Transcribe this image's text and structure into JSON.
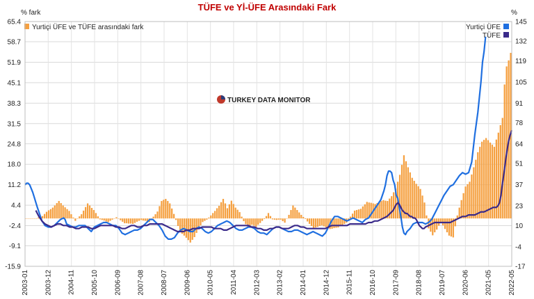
{
  "chart_data": {
    "type": "bar+line",
    "title": "TÜFE ve Yİ-ÜFE Arasındaki Fark",
    "left_axis_unit": "% fark",
    "right_axis_unit": "%",
    "left_ticks": [
      "65.4",
      "58.7",
      "51.9",
      "45.1",
      "38.3",
      "31.5",
      "24.8",
      "18.0",
      "11.2",
      "4.4",
      "-2.4",
      "-9.1",
      "-15.9"
    ],
    "right_ticks": [
      "145",
      "132",
      "119",
      "105",
      "91",
      "78",
      "64",
      "51",
      "37",
      "23",
      "10",
      "-4",
      "-17"
    ],
    "left_ylim": [
      -15.9,
      65.4
    ],
    "right_ylim": [
      -17,
      145
    ],
    "x_tick_labels": [
      "2003-01",
      "2003-12",
      "2004-11",
      "2005-10",
      "2006-09",
      "2007-08",
      "2008-07",
      "2009-06",
      "2010-05",
      "2011-04",
      "2012-03",
      "2013-02",
      "2014-01",
      "2014-12",
      "2015-11",
      "2016-10",
      "2017-09",
      "2018-08",
      "2019-07",
      "2020-06",
      "2021-05",
      "2022-05"
    ],
    "legend_left": "Yurtiçi ÜFE ve TÜFE arasındaki fark",
    "legend_right": [
      "Yurtiçi ÜFE",
      "TÜFE"
    ],
    "colors": {
      "bars": "#f5a040",
      "ufe": "#1f6fe0",
      "tufe": "#3a2a8a",
      "title": "#c00000"
    },
    "watermark": "TURKEY DATA MONITOR",
    "bar_anchors": [
      [
        0,
        0
      ],
      [
        5,
        0
      ],
      [
        8,
        0.8
      ],
      [
        10,
        2.2
      ],
      [
        13,
        3.6
      ],
      [
        16,
        5.8
      ],
      [
        18,
        4.3
      ],
      [
        21,
        2.5
      ],
      [
        24,
        -0.8
      ],
      [
        27,
        1.4
      ],
      [
        30,
        5.0
      ],
      [
        33,
        2.8
      ],
      [
        36,
        -0.3
      ],
      [
        40,
        -1.2
      ],
      [
        44,
        0.4
      ],
      [
        48,
        -1.6
      ],
      [
        52,
        -1.8
      ],
      [
        56,
        -0.5
      ],
      [
        60,
        -1.2
      ],
      [
        64,
        2.3
      ],
      [
        66,
        5.8
      ],
      [
        68,
        6.5
      ],
      [
        70,
        5.0
      ],
      [
        72,
        1.5
      ],
      [
        74,
        -2.5
      ],
      [
        76,
        -5.1
      ],
      [
        78,
        -6.4
      ],
      [
        80,
        -8.0
      ],
      [
        82,
        -6.2
      ],
      [
        84,
        -3.5
      ],
      [
        86,
        -1.2
      ],
      [
        88,
        -0.4
      ],
      [
        90,
        1.0
      ],
      [
        92,
        2.5
      ],
      [
        94,
        4.2
      ],
      [
        96,
        6.5
      ],
      [
        98,
        3.4
      ],
      [
        100,
        5.9
      ],
      [
        102,
        3.6
      ],
      [
        104,
        2.1
      ],
      [
        106,
        -0.9
      ],
      [
        108,
        -3.0
      ],
      [
        110,
        -2.1
      ],
      [
        112,
        -2.8
      ],
      [
        114,
        -1.5
      ],
      [
        116,
        -0.2
      ],
      [
        118,
        1.8
      ],
      [
        120,
        -0.3
      ],
      [
        122,
        -0.5
      ],
      [
        124,
        -0.4
      ],
      [
        126,
        -1.4
      ],
      [
        128,
        1.2
      ],
      [
        130,
        4.3
      ],
      [
        132,
        2.8
      ],
      [
        134,
        1.2
      ],
      [
        136,
        -0.2
      ],
      [
        138,
        -1.8
      ],
      [
        140,
        -3.3
      ],
      [
        144,
        -2.3
      ],
      [
        148,
        -3.5
      ],
      [
        152,
        -3.0
      ],
      [
        156,
        -1.4
      ],
      [
        160,
        2.6
      ],
      [
        163,
        3.2
      ],
      [
        166,
        5.5
      ],
      [
        170,
        4.8
      ],
      [
        174,
        6.1
      ],
      [
        176,
        5.8
      ],
      [
        178,
        7.4
      ],
      [
        180,
        9.9
      ],
      [
        182,
        14.5
      ],
      [
        184,
        21.0
      ],
      [
        186,
        17.0
      ],
      [
        188,
        13.5
      ],
      [
        190,
        11.5
      ],
      [
        192,
        9.8
      ],
      [
        194,
        5.3
      ],
      [
        196,
        -3.3
      ],
      [
        198,
        -5.6
      ],
      [
        200,
        -3.7
      ],
      [
        202,
        -1.1
      ],
      [
        204,
        -3.5
      ],
      [
        206,
        -5.7
      ],
      [
        208,
        -6.3
      ],
      [
        210,
        1.0
      ],
      [
        212,
        6.1
      ],
      [
        214,
        10.6
      ],
      [
        216,
        12.2
      ],
      [
        218,
        17.0
      ],
      [
        220,
        22.0
      ],
      [
        222,
        25.5
      ],
      [
        224,
        26.7
      ],
      [
        226,
        25.2
      ],
      [
        228,
        23.8
      ],
      [
        230,
        28.5
      ],
      [
        232,
        33.4
      ],
      [
        233,
        44.5
      ],
      [
        234,
        50.5
      ],
      [
        235,
        52.5
      ],
      [
        236,
        55.0
      ]
    ],
    "ufe_anchors": [
      [
        0,
        37
      ],
      [
        1,
        38
      ],
      [
        2,
        38
      ],
      [
        3,
        37
      ],
      [
        5,
        32
      ],
      [
        8,
        22
      ],
      [
        10,
        16
      ],
      [
        11,
        13
      ],
      [
        13,
        10
      ],
      [
        15,
        9
      ],
      [
        17,
        9
      ],
      [
        19,
        10
      ],
      [
        21,
        12
      ],
      [
        23,
        14
      ],
      [
        25,
        15
      ],
      [
        26,
        14
      ],
      [
        27,
        11
      ],
      [
        29,
        10
      ],
      [
        31,
        9
      ],
      [
        33,
        9
      ],
      [
        35,
        10
      ],
      [
        37,
        10
      ],
      [
        39,
        10
      ],
      [
        41,
        8
      ],
      [
        43,
        6
      ],
      [
        45,
        9
      ],
      [
        47,
        10
      ],
      [
        49,
        11
      ],
      [
        51,
        12
      ],
      [
        53,
        12
      ],
      [
        55,
        11
      ],
      [
        57,
        10
      ],
      [
        59,
        10
      ],
      [
        61,
        8
      ],
      [
        63,
        5
      ],
      [
        65,
        4
      ],
      [
        67,
        5
      ],
      [
        69,
        6
      ],
      [
        71,
        7
      ],
      [
        73,
        7
      ],
      [
        75,
        8
      ],
      [
        77,
        10
      ],
      [
        79,
        12
      ],
      [
        81,
        14
      ],
      [
        83,
        14
      ],
      [
        85,
        12
      ],
      [
        87,
        10
      ],
      [
        89,
        7
      ],
      [
        91,
        3
      ],
      [
        93,
        1
      ],
      [
        95,
        1
      ],
      [
        97,
        2
      ],
      [
        99,
        5
      ],
      [
        101,
        7
      ],
      [
        103,
        8
      ],
      [
        105,
        7
      ],
      [
        107,
        6
      ],
      [
        109,
        6
      ],
      [
        111,
        8
      ],
      [
        113,
        9
      ],
      [
        115,
        8
      ],
      [
        117,
        6
      ],
      [
        119,
        5
      ],
      [
        121,
        6
      ],
      [
        123,
        8
      ],
      [
        125,
        10
      ],
      [
        127,
        11
      ],
      [
        129,
        12
      ],
      [
        131,
        13
      ],
      [
        133,
        12
      ],
      [
        135,
        10
      ],
      [
        137,
        8
      ],
      [
        139,
        7
      ],
      [
        141,
        7
      ],
      [
        143,
        8
      ],
      [
        145,
        9
      ],
      [
        147,
        9
      ],
      [
        149,
        8
      ],
      [
        151,
        6
      ],
      [
        153,
        5
      ],
      [
        155,
        5
      ],
      [
        157,
        4
      ],
      [
        159,
        6
      ],
      [
        161,
        8
      ],
      [
        163,
        9
      ],
      [
        165,
        9
      ],
      [
        167,
        8
      ],
      [
        169,
        7
      ],
      [
        171,
        6
      ],
      [
        173,
        6
      ],
      [
        175,
        7
      ],
      [
        177,
        7
      ],
      [
        179,
        6
      ],
      [
        181,
        5
      ],
      [
        183,
        4
      ],
      [
        185,
        5
      ],
      [
        187,
        6
      ],
      [
        189,
        5
      ],
      [
        191,
        4
      ],
      [
        193,
        3
      ],
      [
        195,
        5
      ],
      [
        197,
        9
      ],
      [
        199,
        13
      ],
      [
        201,
        16
      ],
      [
        203,
        16
      ],
      [
        205,
        15
      ],
      [
        207,
        14
      ],
      [
        209,
        13
      ],
      [
        211,
        14
      ],
      [
        213,
        15
      ],
      [
        215,
        14
      ],
      [
        217,
        13
      ],
      [
        219,
        12
      ],
      [
        221,
        14
      ],
      [
        223,
        15
      ],
      [
        225,
        18
      ],
      [
        227,
        21
      ],
      [
        229,
        24
      ],
      [
        231,
        27
      ],
      [
        233,
        33
      ],
      [
        234,
        37
      ],
      [
        235,
        43
      ],
      [
        236,
        46
      ],
      [
        237,
        46
      ],
      [
        238,
        45
      ],
      [
        239,
        40
      ],
      [
        240,
        37
      ],
      [
        241,
        30
      ],
      [
        242,
        28
      ],
      [
        244,
        16
      ],
      [
        245,
        9
      ],
      [
        246,
        5
      ],
      [
        247,
        4
      ],
      [
        248,
        6
      ],
      [
        250,
        8
      ],
      [
        252,
        11
      ],
      [
        254,
        12
      ],
      [
        256,
        12
      ],
      [
        258,
        12
      ],
      [
        260,
        11
      ],
      [
        262,
        12
      ],
      [
        264,
        14
      ],
      [
        266,
        18
      ],
      [
        268,
        22
      ],
      [
        270,
        26
      ],
      [
        272,
        30
      ],
      [
        274,
        33
      ],
      [
        276,
        36
      ],
      [
        278,
        37
      ],
      [
        280,
        40
      ],
      [
        282,
        43
      ],
      [
        284,
        45
      ],
      [
        286,
        44
      ],
      [
        288,
        45
      ],
      [
        290,
        52
      ],
      [
        292,
        70
      ],
      [
        294,
        85
      ],
      [
        296,
        105
      ],
      [
        297,
        118
      ],
      [
        298,
        125
      ],
      [
        299,
        135
      ]
    ],
    "tufe_anchors": [
      [
        7,
        20
      ],
      [
        8,
        18
      ],
      [
        9,
        16
      ],
      [
        11,
        13
      ],
      [
        13,
        11
      ],
      [
        15,
        10
      ],
      [
        17,
        9
      ],
      [
        19,
        10
      ],
      [
        21,
        11
      ],
      [
        23,
        11
      ],
      [
        25,
        10
      ],
      [
        27,
        10
      ],
      [
        29,
        9
      ],
      [
        31,
        9
      ],
      [
        33,
        8
      ],
      [
        35,
        8
      ],
      [
        37,
        9
      ],
      [
        39,
        9
      ],
      [
        41,
        9
      ],
      [
        43,
        8
      ],
      [
        45,
        8
      ],
      [
        47,
        9
      ],
      [
        49,
        10
      ],
      [
        51,
        10
      ],
      [
        53,
        10
      ],
      [
        55,
        10
      ],
      [
        57,
        10
      ],
      [
        59,
        9
      ],
      [
        61,
        9
      ],
      [
        63,
        8
      ],
      [
        65,
        8
      ],
      [
        67,
        9
      ],
      [
        69,
        10
      ],
      [
        71,
        10
      ],
      [
        73,
        9
      ],
      [
        75,
        9
      ],
      [
        77,
        10
      ],
      [
        79,
        10
      ],
      [
        81,
        11
      ],
      [
        83,
        11
      ],
      [
        85,
        11
      ],
      [
        87,
        11
      ],
      [
        89,
        11
      ],
      [
        91,
        10
      ],
      [
        93,
        9
      ],
      [
        95,
        8
      ],
      [
        97,
        7
      ],
      [
        99,
        6
      ],
      [
        101,
        6
      ],
      [
        103,
        6
      ],
      [
        105,
        7
      ],
      [
        107,
        7
      ],
      [
        109,
        8
      ],
      [
        111,
        8
      ],
      [
        113,
        8
      ],
      [
        115,
        9
      ],
      [
        117,
        9
      ],
      [
        119,
        9
      ],
      [
        121,
        9
      ],
      [
        123,
        8
      ],
      [
        125,
        8
      ],
      [
        127,
        8
      ],
      [
        129,
        7
      ],
      [
        131,
        7
      ],
      [
        133,
        8
      ],
      [
        135,
        9
      ],
      [
        137,
        10
      ],
      [
        139,
        10
      ],
      [
        141,
        10
      ],
      [
        143,
        10
      ],
      [
        145,
        10
      ],
      [
        147,
        9
      ],
      [
        149,
        9
      ],
      [
        151,
        8
      ],
      [
        153,
        8
      ],
      [
        155,
        7
      ],
      [
        157,
        7
      ],
      [
        159,
        8
      ],
      [
        161,
        8
      ],
      [
        163,
        9
      ],
      [
        165,
        9
      ],
      [
        167,
        8
      ],
      [
        169,
        8
      ],
      [
        171,
        8
      ],
      [
        173,
        9
      ],
      [
        175,
        10
      ],
      [
        177,
        10
      ],
      [
        179,
        9
      ],
      [
        181,
        9
      ],
      [
        183,
        8
      ],
      [
        185,
        8
      ],
      [
        187,
        8
      ],
      [
        189,
        8
      ],
      [
        191,
        8
      ],
      [
        193,
        8
      ],
      [
        195,
        8
      ],
      [
        197,
        9
      ],
      [
        199,
        10
      ],
      [
        201,
        10
      ],
      [
        203,
        10
      ],
      [
        205,
        10
      ],
      [
        207,
        10
      ],
      [
        209,
        10
      ],
      [
        211,
        11
      ],
      [
        213,
        11
      ],
      [
        215,
        11
      ],
      [
        217,
        11
      ],
      [
        219,
        11
      ],
      [
        221,
        11
      ],
      [
        223,
        12
      ],
      [
        225,
        12
      ],
      [
        227,
        13
      ],
      [
        229,
        13
      ],
      [
        231,
        14
      ],
      [
        233,
        15
      ],
      [
        235,
        16
      ],
      [
        237,
        18
      ],
      [
        239,
        20
      ],
      [
        240,
        22
      ],
      [
        241,
        24
      ],
      [
        242,
        25
      ],
      [
        243,
        24
      ],
      [
        244,
        22
      ],
      [
        245,
        20
      ],
      [
        246,
        19
      ],
      [
        247,
        18
      ],
      [
        248,
        18
      ],
      [
        249,
        17
      ],
      [
        250,
        16
      ],
      [
        251,
        16
      ],
      [
        252,
        15
      ],
      [
        253,
        15
      ],
      [
        254,
        14
      ],
      [
        255,
        12
      ],
      [
        256,
        10
      ],
      [
        257,
        9
      ],
      [
        258,
        8
      ],
      [
        259,
        8
      ],
      [
        260,
        9
      ],
      [
        262,
        10
      ],
      [
        264,
        11
      ],
      [
        266,
        12
      ],
      [
        268,
        12
      ],
      [
        270,
        12
      ],
      [
        272,
        12
      ],
      [
        274,
        12
      ],
      [
        276,
        12
      ],
      [
        278,
        13
      ],
      [
        280,
        14
      ],
      [
        282,
        15
      ],
      [
        284,
        16
      ],
      [
        286,
        16
      ],
      [
        288,
        17
      ],
      [
        290,
        17
      ],
      [
        292,
        17
      ],
      [
        294,
        18
      ],
      [
        296,
        19
      ],
      [
        298,
        19
      ],
      [
        300,
        20
      ],
      [
        302,
        21
      ],
      [
        304,
        22
      ],
      [
        306,
        22
      ],
      [
        307,
        23
      ],
      [
        308,
        25
      ],
      [
        309,
        30
      ],
      [
        310,
        38
      ],
      [
        311,
        45
      ],
      [
        312,
        53
      ],
      [
        313,
        60
      ],
      [
        314,
        66
      ],
      [
        315,
        70
      ],
      [
        316,
        73
      ]
    ]
  }
}
